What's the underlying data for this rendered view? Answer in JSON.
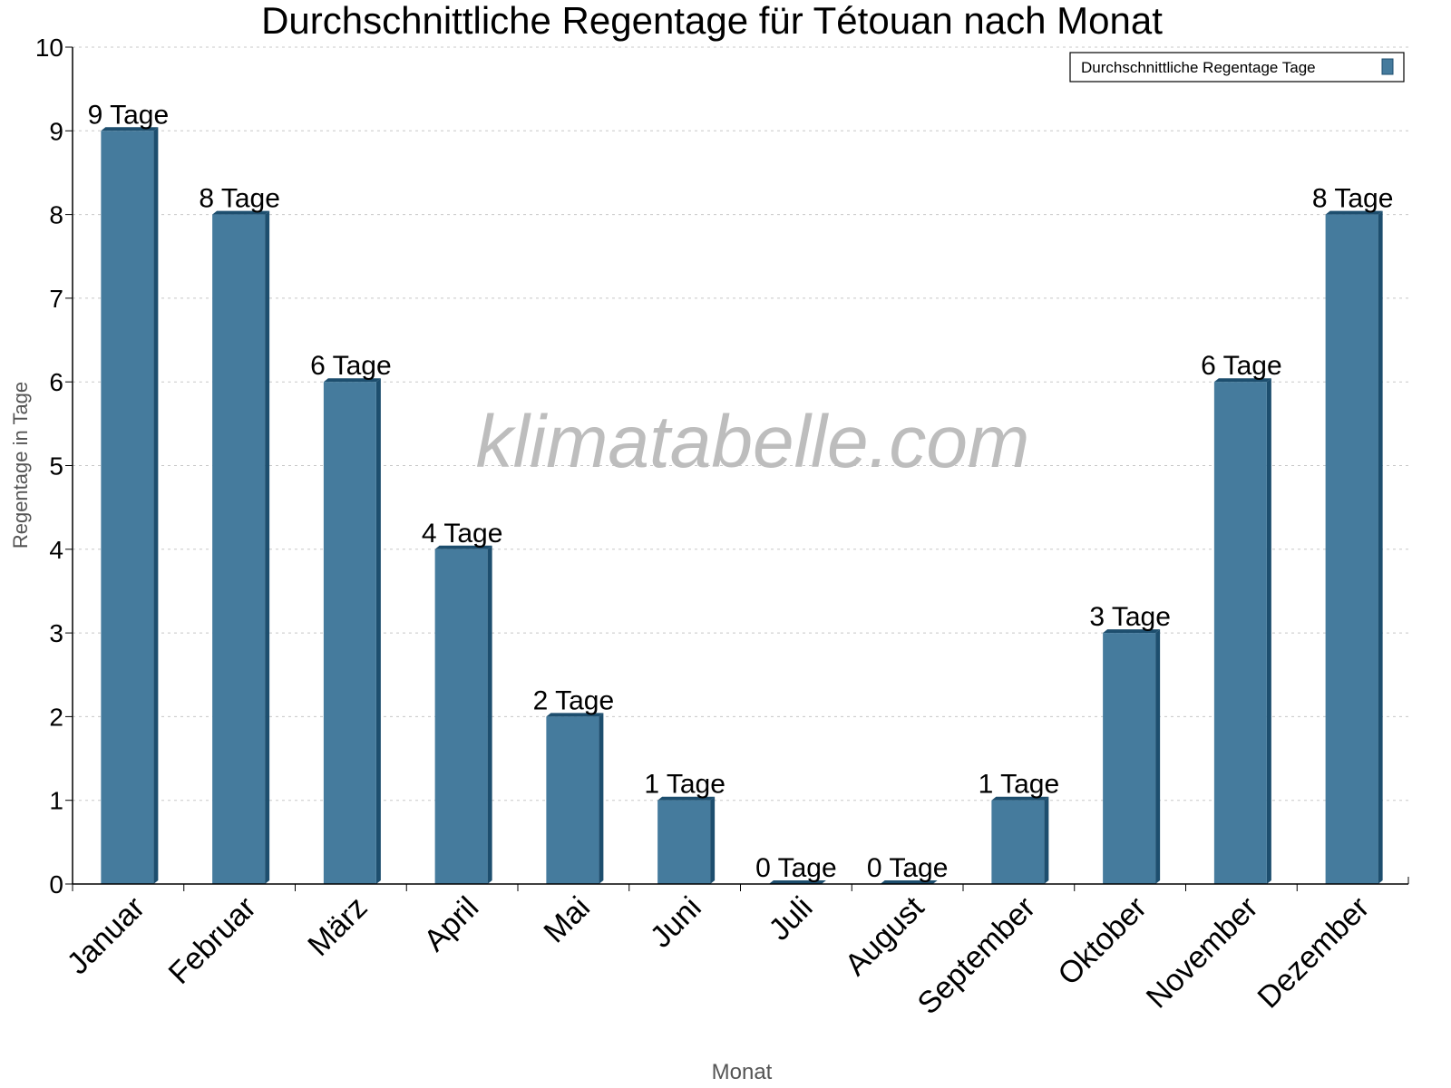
{
  "chart_data": {
    "type": "bar",
    "title": "Durchschnittliche Regentage für Tétouan nach Monat",
    "xlabel": "Monat",
    "ylabel": "Regentage in Tage",
    "ylim": [
      0,
      10
    ],
    "yticks": [
      "0",
      "1",
      "2",
      "3",
      "4",
      "5",
      "6",
      "7",
      "8",
      "9",
      "10"
    ],
    "grid": true,
    "legend_position": "top-right",
    "categories": [
      "Januar",
      "Februar",
      "März",
      "April",
      "Mai",
      "Juni",
      "Juli",
      "August",
      "September",
      "Oktober",
      "November",
      "Dezember"
    ],
    "series": [
      {
        "name": "Durchschnittliche Regentage Tage",
        "values": [
          9,
          8,
          6,
          4,
          2,
          1,
          0,
          0,
          1,
          3,
          6,
          8
        ]
      }
    ],
    "data_labels": [
      "9 Tage",
      "8 Tage",
      "6 Tage",
      "4 Tage",
      "2 Tage",
      "1 Tage",
      "0 Tage",
      "0 Tage",
      "1 Tage",
      "3 Tage",
      "6 Tage",
      "8 Tage"
    ],
    "colors": {
      "bar": "#457b9d",
      "bar_side": "#1d4e6e"
    }
  },
  "watermark": "klimatabelle.com"
}
